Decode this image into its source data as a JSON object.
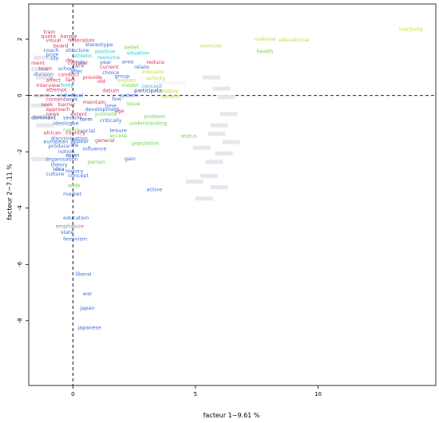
{
  "chart_data": {
    "type": "scatter",
    "title": "",
    "xlabel": "facteur  1−9.61 %",
    "ylabel": "facteur  2−7.11 %",
    "xlim": [
      -1.8,
      14.8
    ],
    "ylim": [
      -10.3,
      3.25
    ],
    "xticks": [
      0,
      5,
      10
    ],
    "yticks": [
      2,
      0,
      -2,
      -4,
      -6,
      -8
    ],
    "grid": false,
    "reference_lines": {
      "x": 0,
      "y": 0,
      "style": "dashed"
    },
    "colors": {
      "red": "#d6345a",
      "blue": "#3a6fd8",
      "cyan": "#2ec2c8",
      "green": "#6ecf4c",
      "yellow": "#c2dc2e",
      "olive": "#8fbf28",
      "grey": "#8a8a8a",
      "navy": "#1b3f9e",
      "faint": "#e6e6ee"
    },
    "points": [
      {
        "label": "inactivity",
        "x": 13.3,
        "y": 2.3,
        "color": "yellow"
      },
      {
        "label": "material",
        "x": 7.4,
        "y": 1.95,
        "color": "yellow"
      },
      {
        "label": "educational",
        "x": 8.4,
        "y": 1.92,
        "color": "yellow"
      },
      {
        "label": "exercise",
        "x": 5.2,
        "y": 1.7,
        "color": "yellow"
      },
      {
        "label": "health",
        "x": 7.5,
        "y": 1.5,
        "color": "green"
      },
      {
        "label": "train",
        "x": -1.2,
        "y": 2.2,
        "color": "red"
      },
      {
        "label": "quota",
        "x": -1.3,
        "y": 2.05,
        "color": "red"
      },
      {
        "label": "karate",
        "x": -0.5,
        "y": 2.05,
        "color": "red"
      },
      {
        "label": "visual",
        "x": -1.1,
        "y": 1.9,
        "color": "red"
      },
      {
        "label": "federation",
        "x": -0.2,
        "y": 1.9,
        "color": "red"
      },
      {
        "label": "board",
        "x": -0.8,
        "y": 1.7,
        "color": "red"
      },
      {
        "label": "stereotype",
        "x": 0.5,
        "y": 1.75,
        "color": "blue"
      },
      {
        "label": "belief",
        "x": 2.1,
        "y": 1.65,
        "color": "green"
      },
      {
        "label": "coach",
        "x": -1.2,
        "y": 1.55,
        "color": "blue"
      },
      {
        "label": "structure",
        "x": -0.3,
        "y": 1.55,
        "color": "blue"
      },
      {
        "label": "positive",
        "x": 0.9,
        "y": 1.5,
        "color": "cyan"
      },
      {
        "label": "situation",
        "x": 2.2,
        "y": 1.45,
        "color": "cyan"
      },
      {
        "label": "prize",
        "x": -1.1,
        "y": 1.4,
        "color": "blue"
      },
      {
        "label": "athletic",
        "x": 0.0,
        "y": 1.35,
        "color": "cyan"
      },
      {
        "label": "resource",
        "x": 1.0,
        "y": 1.3,
        "color": "cyan"
      },
      {
        "label": "life",
        "x": -0.9,
        "y": 1.25,
        "color": "blue"
      },
      {
        "label": "de",
        "x": -0.3,
        "y": 1.2,
        "color": "red"
      },
      {
        "label": "ment",
        "x": -1.7,
        "y": 1.1,
        "color": "red"
      },
      {
        "label": "cultural",
        "x": -0.2,
        "y": 1.1,
        "color": "red"
      },
      {
        "label": "role",
        "x": 0.1,
        "y": 1.12,
        "color": "blue"
      },
      {
        "label": "year",
        "x": 1.1,
        "y": 1.12,
        "color": "blue"
      },
      {
        "label": "area",
        "x": 2.0,
        "y": 1.14,
        "color": "blue"
      },
      {
        "label": "reduce",
        "x": 3.0,
        "y": 1.12,
        "color": "red"
      },
      {
        "label": "team",
        "x": -1.4,
        "y": 0.9,
        "color": "red"
      },
      {
        "label": "school",
        "x": -0.6,
        "y": 0.9,
        "color": "blue"
      },
      {
        "label": "race",
        "x": 0.0,
        "y": 1.0,
        "color": "blue"
      },
      {
        "label": "current",
        "x": 1.1,
        "y": 0.95,
        "color": "red"
      },
      {
        "label": "relate",
        "x": 2.5,
        "y": 0.95,
        "color": "blue"
      },
      {
        "label": "division",
        "x": -1.6,
        "y": 0.7,
        "color": "blue"
      },
      {
        "label": "conduct",
        "x": -0.6,
        "y": 0.68,
        "color": "red"
      },
      {
        "label": "offer",
        "x": -0.1,
        "y": 0.8,
        "color": "blue"
      },
      {
        "label": "choice",
        "x": 1.2,
        "y": 0.75,
        "color": "blue"
      },
      {
        "label": "indicator",
        "x": 2.8,
        "y": 0.78,
        "color": "yellow"
      },
      {
        "label": "group",
        "x": 1.7,
        "y": 0.63,
        "color": "blue"
      },
      {
        "label": "affect",
        "x": -1.1,
        "y": 0.48,
        "color": "red"
      },
      {
        "label": "fact",
        "x": -0.3,
        "y": 0.5,
        "color": "red"
      },
      {
        "label": "provide",
        "x": 0.4,
        "y": 0.58,
        "color": "red"
      },
      {
        "label": "activity",
        "x": 3.0,
        "y": 0.55,
        "color": "yellow"
      },
      {
        "label": "old",
        "x": 1.0,
        "y": 0.45,
        "color": "red"
      },
      {
        "label": "explain",
        "x": 1.8,
        "y": 0.48,
        "color": "yellow"
      },
      {
        "label": "intervention",
        "x": 3.3,
        "y": 0.4,
        "color": "faint"
      },
      {
        "label": "interview",
        "x": -1.5,
        "y": 0.3,
        "color": "red"
      },
      {
        "label": "body",
        "x": -0.5,
        "y": 0.32,
        "color": "cyan"
      },
      {
        "label": "model",
        "x": 2.0,
        "y": 0.3,
        "color": "green"
      },
      {
        "label": "concept",
        "x": 2.8,
        "y": 0.28,
        "color": "cyan"
      },
      {
        "label": "attempt",
        "x": -1.1,
        "y": 0.15,
        "color": "red"
      },
      {
        "label": "datum",
        "x": 1.2,
        "y": 0.12,
        "color": "red"
      },
      {
        "label": "participate",
        "x": 2.5,
        "y": 0.12,
        "color": "navy"
      },
      {
        "label": "relative",
        "x": 3.5,
        "y": 0.1,
        "color": "yellow"
      },
      {
        "label": "assess",
        "x": -1.6,
        "y": -0.05,
        "color": "grey"
      },
      {
        "label": "individual",
        "x": -0.6,
        "y": -0.05,
        "color": "blue"
      },
      {
        "label": "system",
        "x": 1.9,
        "y": -0.05,
        "color": "blue"
      },
      {
        "label": "benefit",
        "x": 3.6,
        "y": -0.1,
        "color": "yellow"
      },
      {
        "label": "content",
        "x": -1.1,
        "y": -0.2,
        "color": "red"
      },
      {
        "label": "work",
        "x": -0.3,
        "y": -0.2,
        "color": "blue"
      },
      {
        "label": "few",
        "x": 1.6,
        "y": -0.18,
        "color": "blue"
      },
      {
        "label": "seek",
        "x": -1.3,
        "y": -0.38,
        "color": "red"
      },
      {
        "label": "barrier",
        "x": -0.6,
        "y": -0.38,
        "color": "red"
      },
      {
        "label": "maintain",
        "x": 0.4,
        "y": -0.3,
        "color": "red"
      },
      {
        "label": "time",
        "x": 1.3,
        "y": -0.42,
        "color": "blue"
      },
      {
        "label": "issue",
        "x": 2.2,
        "y": -0.35,
        "color": "green"
      },
      {
        "label": "approach",
        "x": -1.1,
        "y": -0.55,
        "color": "red"
      },
      {
        "label": "development",
        "x": 0.5,
        "y": -0.55,
        "color": "blue"
      },
      {
        "label": "age",
        "x": 1.7,
        "y": -0.6,
        "color": "red"
      },
      {
        "label": "news",
        "x": -1.1,
        "y": -0.72,
        "color": "red"
      },
      {
        "label": "extent",
        "x": -0.1,
        "y": -0.72,
        "color": "red"
      },
      {
        "label": "promote",
        "x": 0.9,
        "y": -0.72,
        "color": "green"
      },
      {
        "label": "problem",
        "x": 2.9,
        "y": -0.8,
        "color": "green"
      },
      {
        "label": "dominant",
        "x": -1.7,
        "y": -0.85,
        "color": "navy"
      },
      {
        "label": "sexism",
        "x": -0.4,
        "y": -0.85,
        "color": "blue"
      },
      {
        "label": "form",
        "x": 0.3,
        "y": -0.9,
        "color": "navy"
      },
      {
        "label": "critically",
        "x": 1.1,
        "y": -0.95,
        "color": "blue"
      },
      {
        "label": "understanding",
        "x": 2.3,
        "y": -1.05,
        "color": "green"
      },
      {
        "label": "ideologue",
        "x": -0.8,
        "y": -1.05,
        "color": "blue"
      },
      {
        "label": "nature",
        "x": -0.4,
        "y": -1.28,
        "color": "green"
      },
      {
        "label": "social",
        "x": 0.3,
        "y": -1.32,
        "color": "blue"
      },
      {
        "label": "leisure",
        "x": 1.5,
        "y": -1.3,
        "color": "blue"
      },
      {
        "label": "african",
        "x": -1.2,
        "y": -1.38,
        "color": "red"
      },
      {
        "label": "country",
        "x": -0.3,
        "y": -1.38,
        "color": "red"
      },
      {
        "label": "access",
        "x": 1.5,
        "y": -1.48,
        "color": "green"
      },
      {
        "label": "status",
        "x": 4.4,
        "y": -1.5,
        "color": "green"
      },
      {
        "label": "discrimination",
        "x": -0.9,
        "y": -1.58,
        "color": "blue"
      },
      {
        "label": "general",
        "x": 0.9,
        "y": -1.65,
        "color": "red"
      },
      {
        "label": "population",
        "x": 2.4,
        "y": -1.75,
        "color": "green"
      },
      {
        "label": "european",
        "x": -1.2,
        "y": -1.7,
        "color": "blue"
      },
      {
        "label": "appear",
        "x": -0.1,
        "y": -1.68,
        "color": "blue"
      },
      {
        "label": "produce",
        "x": -1.0,
        "y": -1.85,
        "color": "blue"
      },
      {
        "label": "life",
        "x": -0.1,
        "y": -1.82,
        "color": "blue"
      },
      {
        "label": "influence",
        "x": 0.4,
        "y": -1.95,
        "color": "blue"
      },
      {
        "label": "notion",
        "x": -0.6,
        "y": -2.05,
        "color": "blue"
      },
      {
        "label": "asian",
        "x": -0.3,
        "y": -2.18,
        "color": "navy"
      },
      {
        "label": "organisation",
        "x": -1.1,
        "y": -2.32,
        "color": "blue"
      },
      {
        "label": "gain",
        "x": 2.1,
        "y": -2.3,
        "color": "blue"
      },
      {
        "label": "person",
        "x": 0.6,
        "y": -2.42,
        "color": "green"
      },
      {
        "label": "theory",
        "x": -0.9,
        "y": -2.52,
        "color": "blue"
      },
      {
        "label": "idea",
        "x": -0.8,
        "y": -2.68,
        "color": "navy"
      },
      {
        "label": "history",
        "x": -0.3,
        "y": -2.75,
        "color": "blue"
      },
      {
        "label": "culture",
        "x": -1.1,
        "y": -2.85,
        "color": "blue"
      },
      {
        "label": "concept",
        "x": -0.2,
        "y": -2.9,
        "color": "blue"
      },
      {
        "label": "active",
        "x": 3.0,
        "y": -3.4,
        "color": "blue"
      },
      {
        "label": "wide",
        "x": -0.2,
        "y": -3.25,
        "color": "green"
      },
      {
        "label": "market",
        "x": -0.4,
        "y": -3.55,
        "color": "blue"
      },
      {
        "label": "education",
        "x": -0.4,
        "y": -4.4,
        "color": "blue"
      },
      {
        "label": "emphasize",
        "x": -0.7,
        "y": -4.7,
        "color": "grey"
      },
      {
        "label": "state",
        "x": -0.5,
        "y": -4.92,
        "color": "blue"
      },
      {
        "label": "feminism",
        "x": -0.4,
        "y": -5.15,
        "color": "blue"
      },
      {
        "label": "liberal",
        "x": 0.1,
        "y": -6.4,
        "color": "blue"
      },
      {
        "label": "war",
        "x": 0.4,
        "y": -7.1,
        "color": "blue"
      },
      {
        "label": "japan",
        "x": 0.3,
        "y": -7.6,
        "color": "blue"
      },
      {
        "label": "japanese",
        "x": 0.2,
        "y": -8.3,
        "color": "blue"
      }
    ]
  }
}
